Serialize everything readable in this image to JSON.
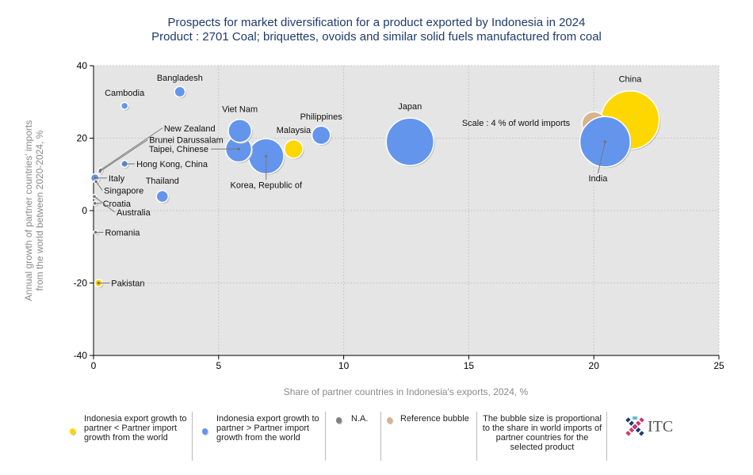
{
  "chart_data": {
    "type": "bubble",
    "title": "Prospects for market diversification for a product exported by Indonesia in 2024",
    "subtitle": "Product : 2701 Coal; briquettes, ovoids and similar solid fuels manufactured from coal",
    "xlabel": "Share of partner countries in Indonesia's exports, 2024, %",
    "ylabel_line1": "Annual growth of partner countries' imports",
    "ylabel_line2": "from the world between 2020-2024, %",
    "xlim": [
      0,
      25
    ],
    "ylim": [
      -40,
      40
    ],
    "xticks": [
      "0",
      "5",
      "10",
      "15",
      "20",
      "25"
    ],
    "yticks": [
      "40",
      "20",
      "0",
      "-20",
      "-40"
    ],
    "grid": true,
    "colors": {
      "slower": "#FFD700",
      "faster": "#6495ED",
      "na": "#808080",
      "reference": "#D8B48C",
      "plot_bg": "#E5E5E5"
    },
    "points": [
      {
        "name": "Bangladesh",
        "x": 3.45,
        "y": 32.8,
        "size": 0.8,
        "cat": "faster"
      },
      {
        "name": "Cambodia",
        "x": 1.24,
        "y": 28.9,
        "size": 0.35,
        "cat": "faster"
      },
      {
        "name": "New Zealand",
        "x": 0.28,
        "y": 11.2,
        "size": 0.1,
        "cat": "slower"
      },
      {
        "name": "Brunei Darussalam",
        "x": 0.26,
        "y": 10.8,
        "size": 0.05,
        "cat": "na"
      },
      {
        "name": "Hong Kong, China",
        "x": 1.24,
        "y": 12.9,
        "size": 0.35,
        "cat": "faster"
      },
      {
        "name": "Italy",
        "x": 0.06,
        "y": 9,
        "size": 0.5,
        "cat": "faster"
      },
      {
        "name": "Singapore",
        "x": 0.1,
        "y": 8,
        "size": 0.05,
        "cat": "na"
      },
      {
        "name": "Croatia",
        "x": 0.05,
        "y": 2,
        "size": 0.05,
        "cat": "na"
      },
      {
        "name": "Australia",
        "x": 0.03,
        "y": 3.9,
        "size": 0.05,
        "cat": "na"
      },
      {
        "name": "Romania",
        "x": 0.08,
        "y": -6,
        "size": 0.05,
        "cat": "na"
      },
      {
        "name": "Pakistan",
        "x": 0.2,
        "y": -20,
        "size": 0.4,
        "cat": "slower"
      },
      {
        "name": "Thailand",
        "x": 2.75,
        "y": 3.9,
        "size": 1.0,
        "cat": "faster"
      },
      {
        "name": "Viet Nam",
        "x": 5.85,
        "y": 22,
        "size": 3.8,
        "cat": "faster"
      },
      {
        "name": "Taipei, Chinese",
        "x": 5.8,
        "y": 17,
        "size": 4.8,
        "cat": "faster"
      },
      {
        "name": "Korea, Republic of",
        "x": 6.9,
        "y": 15,
        "size": 8.8,
        "cat": "faster"
      },
      {
        "name": "Malaysia",
        "x": 8.0,
        "y": 17,
        "size": 2.4,
        "cat": "slower"
      },
      {
        "name": "Philippines",
        "x": 9.1,
        "y": 20.8,
        "size": 2.4,
        "cat": "faster"
      },
      {
        "name": "Japan",
        "x": 12.65,
        "y": 19,
        "size": 16,
        "cat": "faster"
      },
      {
        "name": "China",
        "x": 21.45,
        "y": 25,
        "size": 24,
        "cat": "slower"
      },
      {
        "name": "India",
        "x": 20.45,
        "y": 19,
        "size": 18,
        "cat": "faster"
      }
    ],
    "reference": {
      "label": "Scale : 4 % of world imports",
      "x": 20,
      "y": 24,
      "size": 4
    }
  },
  "legend": {
    "slower": "Indonesia export growth to partner < Partner import growth from the world",
    "faster": "Indonesia export growth to partner > Partner import growth from the world",
    "na": "N.A.",
    "reference": "Reference bubble",
    "note": "The bubble size is proportional to the share in world imports of partner countries for the selected product"
  },
  "logo": "ITC"
}
